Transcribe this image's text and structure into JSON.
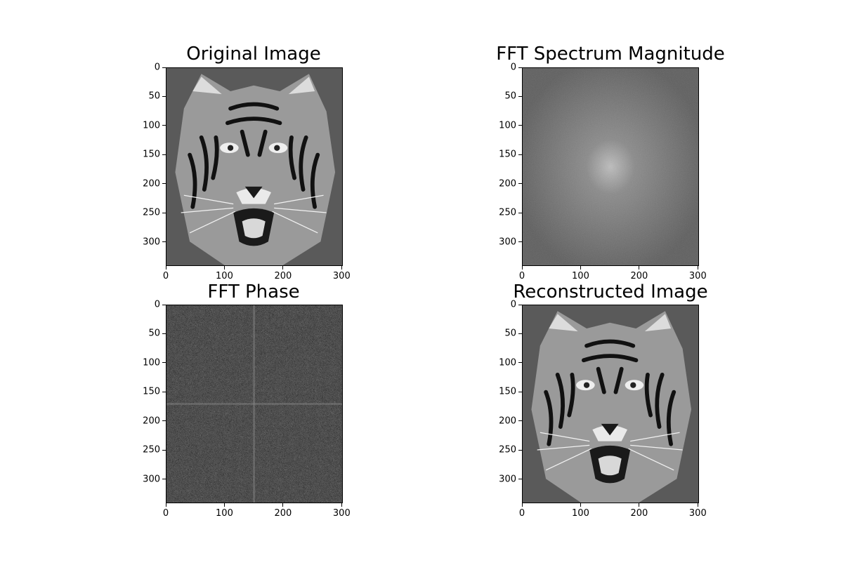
{
  "chart_data": [
    {
      "type": "image",
      "title": "Original Image",
      "image_content": "grayscale tiger face photograph",
      "image_size": [
        302,
        341
      ],
      "xticks": [
        "0",
        "100",
        "200",
        "300"
      ],
      "yticks": [
        "0",
        "50",
        "100",
        "150",
        "200",
        "250",
        "300"
      ],
      "xlim": [
        0,
        302
      ],
      "ylim": [
        341,
        0
      ]
    },
    {
      "type": "image",
      "title": "FFT Spectrum Magnitude",
      "image_content": "log magnitude spectrum, bright center near (150, 170)",
      "image_size": [
        302,
        341
      ],
      "xticks": [
        "0",
        "100",
        "200",
        "300"
      ],
      "yticks": [
        "0",
        "50",
        "100",
        "150",
        "200",
        "250",
        "300"
      ],
      "xlim": [
        0,
        302
      ],
      "ylim": [
        341,
        0
      ]
    },
    {
      "type": "image",
      "title": "FFT Phase",
      "image_content": "noise-like phase pattern with faint center cross",
      "image_size": [
        302,
        341
      ],
      "xticks": [
        "0",
        "100",
        "200",
        "300"
      ],
      "yticks": [
        "0",
        "50",
        "100",
        "150",
        "200",
        "250",
        "300"
      ],
      "xlim": [
        0,
        302
      ],
      "ylim": [
        341,
        0
      ]
    },
    {
      "type": "image",
      "title": "Reconstructed Image",
      "image_content": "grayscale tiger face photograph",
      "image_size": [
        302,
        341
      ],
      "xticks": [
        "0",
        "100",
        "200",
        "300"
      ],
      "yticks": [
        "0",
        "50",
        "100",
        "150",
        "200",
        "250",
        "300"
      ],
      "xlim": [
        0,
        302
      ],
      "ylim": [
        341,
        0
      ]
    }
  ]
}
